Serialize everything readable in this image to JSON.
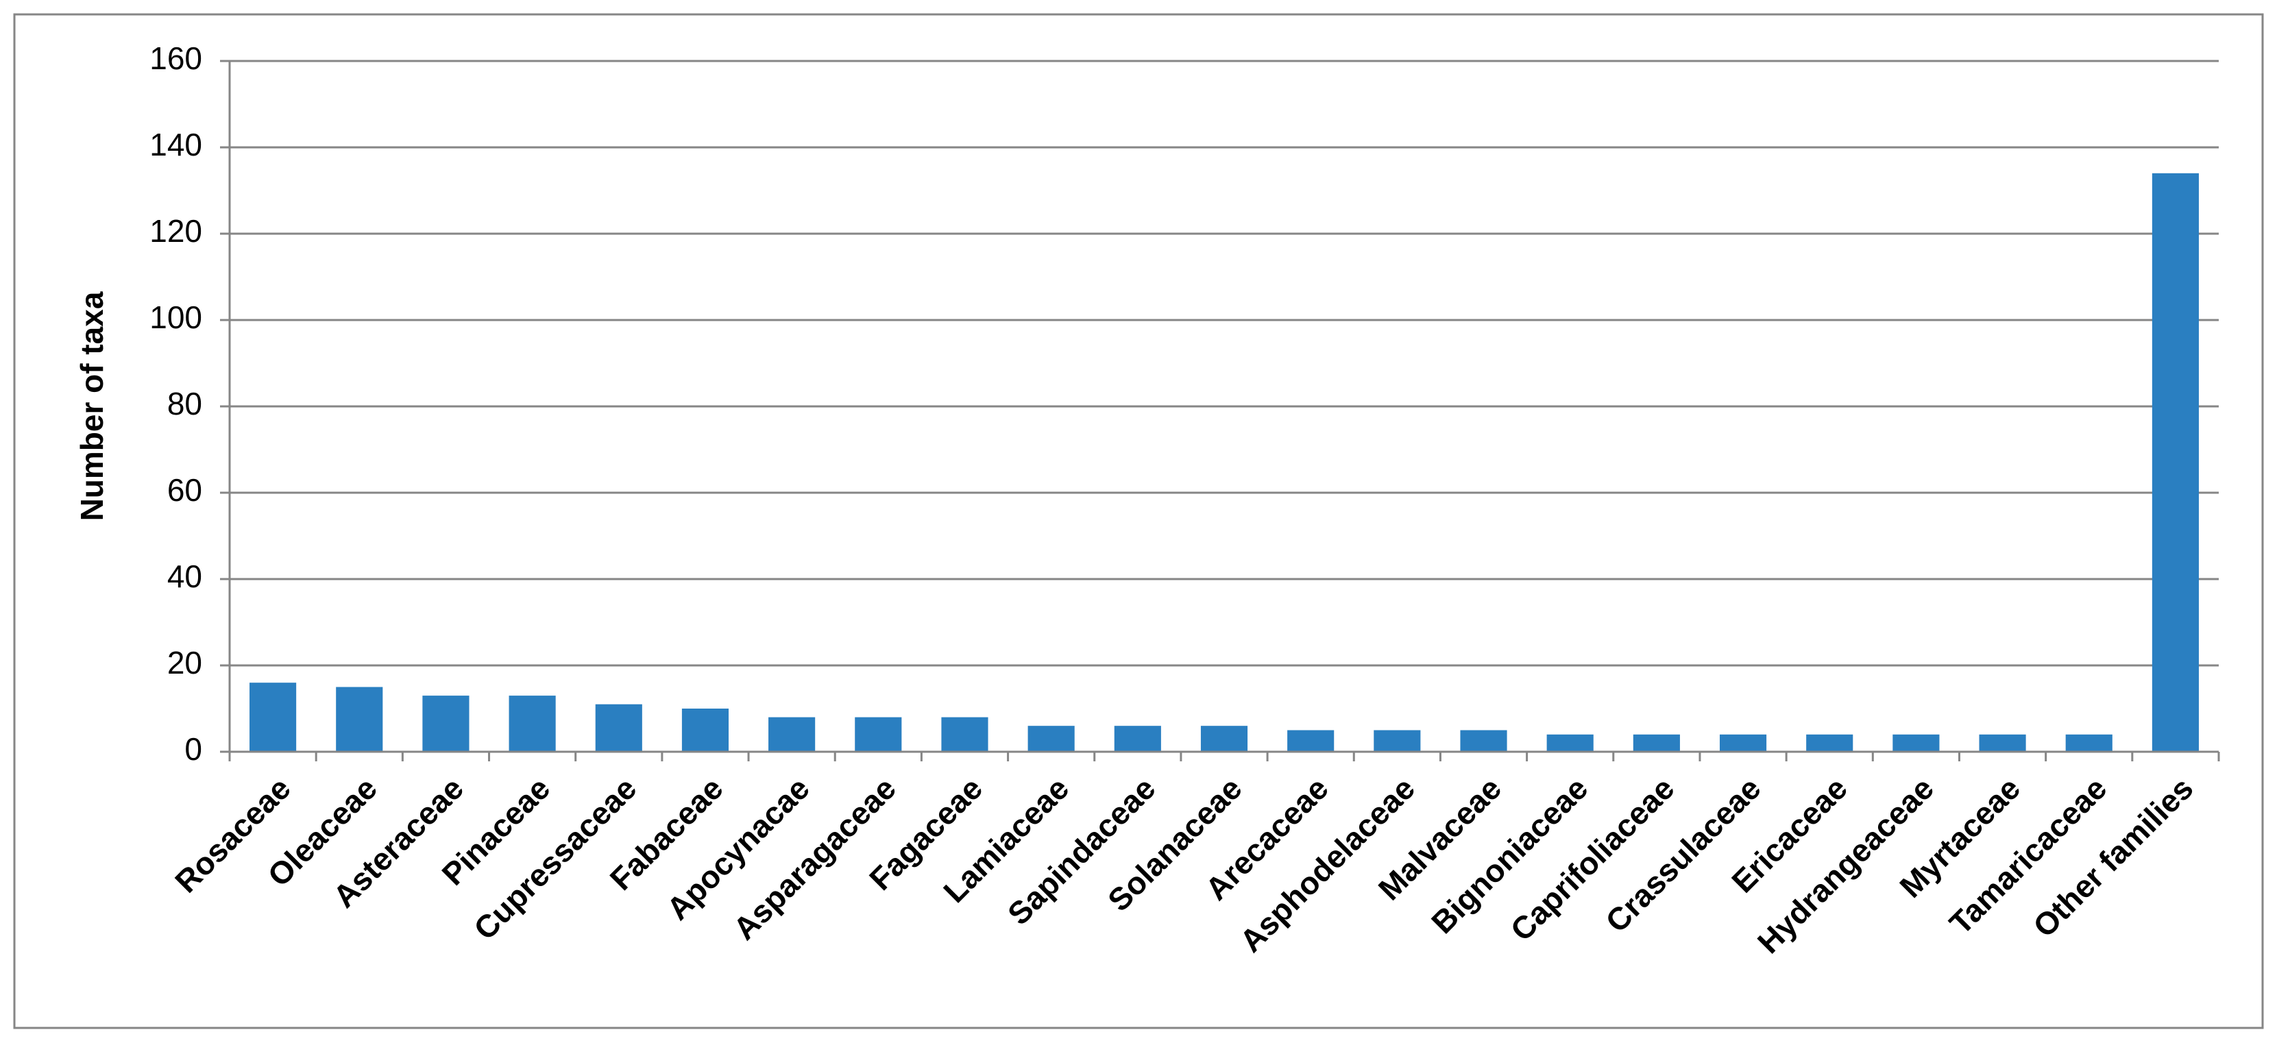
{
  "chart_data": {
    "type": "bar",
    "y_label": "Number of taxa",
    "categories": [
      "Rosaceae",
      "Oleaceae",
      "Asteraceae",
      "Pinaceae",
      "Cupressaceae",
      "Fabaceae",
      "Apocynacae",
      "Asparagaceae",
      "Fagaceae",
      "Lamiaceae",
      "Sapindaceae",
      "Solanaceae",
      "Arecaceae",
      "Asphodelaceae",
      "Malvaceae",
      "Bignoniaceae",
      "Caprifoliaceae",
      "Crassulaceae",
      "Ericaceae",
      "Hydrangeaceae",
      "Myrtaceae",
      "Tamaricaceae",
      "Other families"
    ],
    "values": [
      16,
      15,
      13,
      13,
      11,
      10,
      8,
      8,
      8,
      6,
      6,
      6,
      5,
      5,
      5,
      4,
      4,
      4,
      4,
      4,
      4,
      4,
      134
    ],
    "color": "#2a7fc1",
    "ylim": [
      0,
      160
    ],
    "yticks": [
      0,
      20,
      40,
      60,
      80,
      100,
      120,
      140,
      160
    ],
    "grid": true
  }
}
